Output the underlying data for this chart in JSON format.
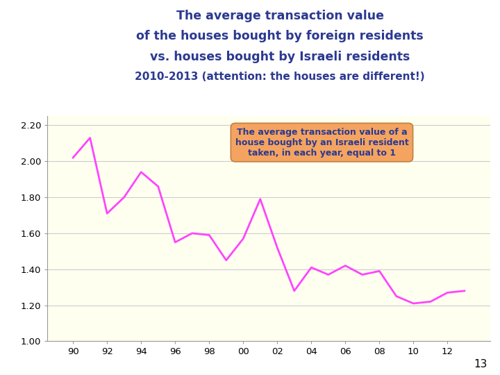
{
  "title_line1": "The average transaction value",
  "title_line2": "of the houses bought by foreign residents",
  "title_line3": "vs. houses bought by Israeli residents",
  "title_line4": "2010-2013 (attention: the houses are different!)",
  "title_color": "#2B3990",
  "x_values": [
    90,
    91,
    92,
    93,
    94,
    95,
    96,
    97,
    98,
    99,
    100,
    101,
    102,
    103,
    104,
    105,
    106,
    107,
    108,
    109,
    110,
    111,
    112,
    113
  ],
  "y_values": [
    2.02,
    2.13,
    1.71,
    1.8,
    1.94,
    1.86,
    1.55,
    1.6,
    1.59,
    1.45,
    1.57,
    1.79,
    1.52,
    1.28,
    1.41,
    1.37,
    1.42,
    1.37,
    1.39,
    1.25,
    1.21,
    1.22,
    1.27,
    1.28
  ],
  "x_tick_labels": [
    "90",
    "92",
    "94",
    "96",
    "98",
    "00",
    "02",
    "04",
    "06",
    "08",
    "10",
    "12"
  ],
  "x_tick_positions": [
    90,
    92,
    94,
    96,
    98,
    100,
    102,
    104,
    106,
    108,
    110,
    112
  ],
  "ylim": [
    1.0,
    2.25
  ],
  "yticks": [
    1.0,
    1.2,
    1.4,
    1.6,
    1.8,
    2.0,
    2.2
  ],
  "line_color": "#FF44FF",
  "line_width": 2.0,
  "plot_bg_color": "#FFFFF0",
  "fig_bg_color": "#FFFFFF",
  "annotation_text": "The average transaction value of a\nhouse bought by an Israeli resident\ntaken, in each year, equal to 1",
  "annotation_box_color": "#F4A460",
  "annotation_text_color": "#2B3990",
  "page_number": "13"
}
